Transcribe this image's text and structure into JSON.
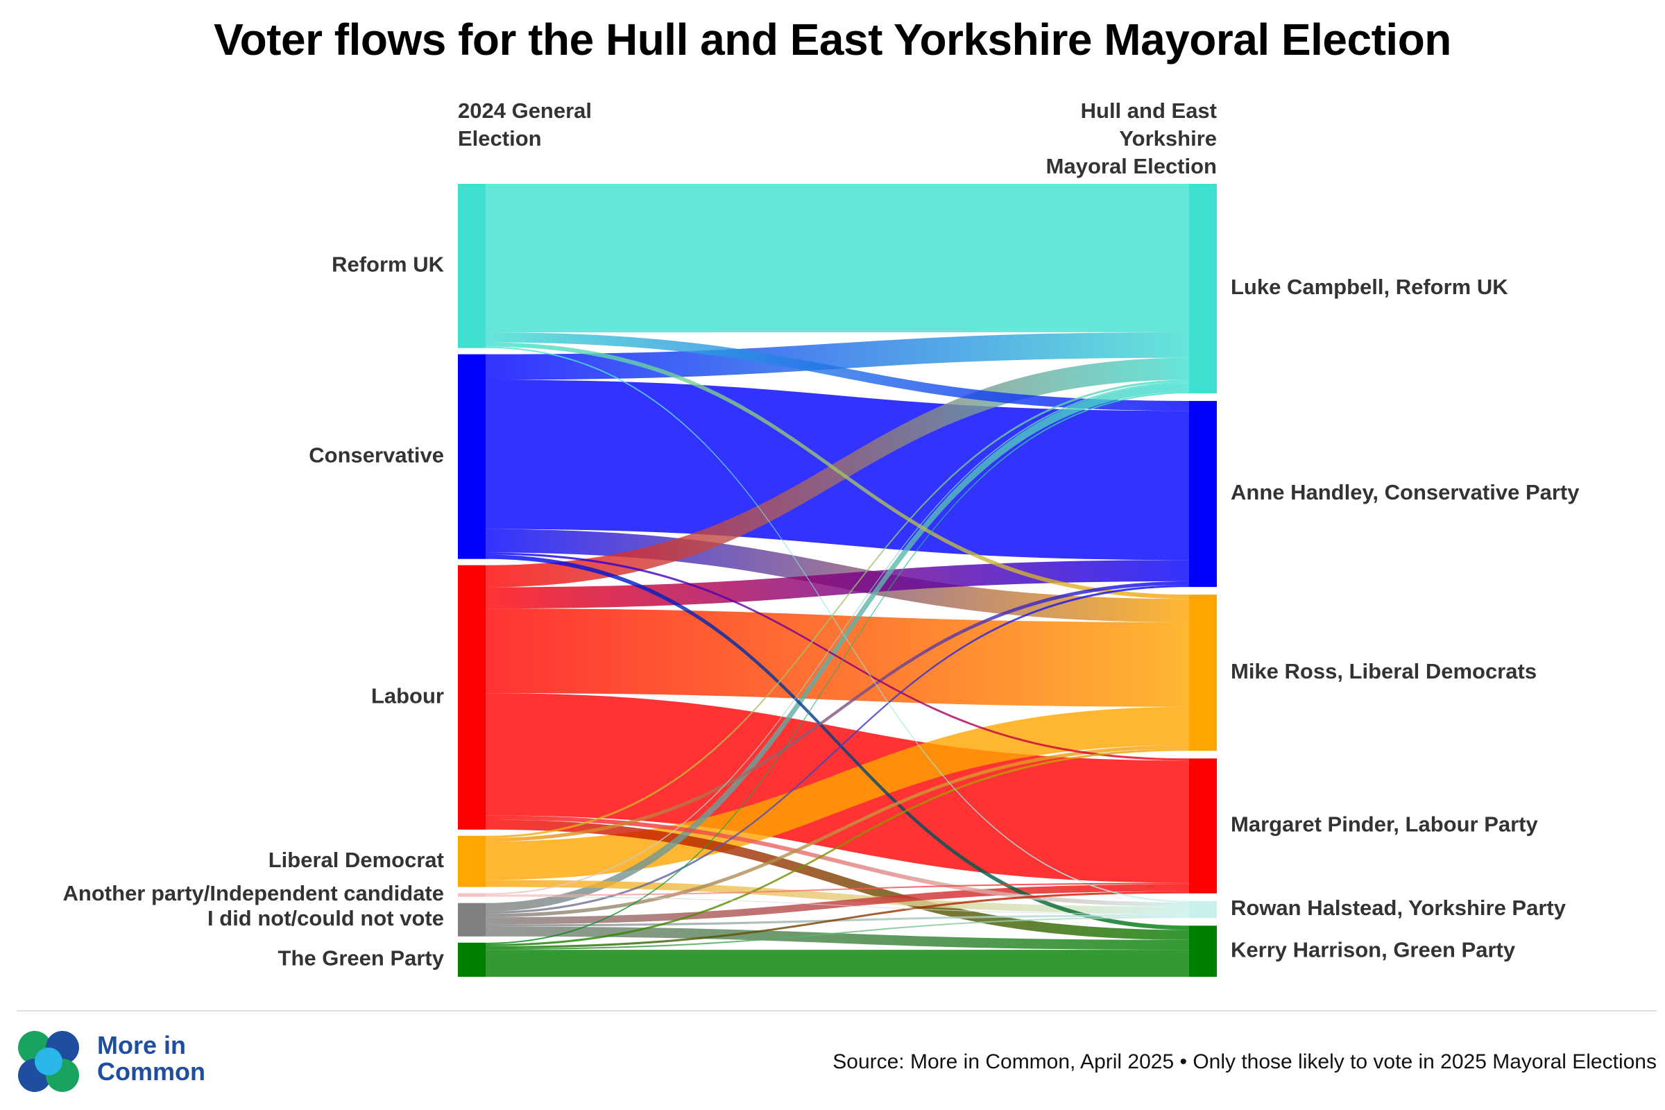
{
  "title": "Voter flows for the Hull and East Yorkshire Mayoral Election",
  "chart_data": {
    "type": "sankey",
    "left_column_title": [
      "2024 General",
      "Election"
    ],
    "right_column_title": [
      "Hull and East",
      "Yorkshire",
      "Mayoral Election"
    ],
    "sources": [
      {
        "id": "reform",
        "label": "Reform UK",
        "color": "#40e0d0"
      },
      {
        "id": "con",
        "label": "Conservative",
        "color": "#0000ff"
      },
      {
        "id": "lab",
        "label": "Labour",
        "color": "#ff0000"
      },
      {
        "id": "ld",
        "label": "Liberal Democrat",
        "color": "#ffa500"
      },
      {
        "id": "oth",
        "label": "Another party/Independent candidate",
        "color": "#f4c2c2"
      },
      {
        "id": "dnv",
        "label": "I did not/could not vote",
        "color": "#808080"
      },
      {
        "id": "grn",
        "label": "The Green Party",
        "color": "#008000"
      }
    ],
    "targets": [
      {
        "id": "luke",
        "label": "Luke Campbell, Reform UK",
        "color": "#40e0d0"
      },
      {
        "id": "anne",
        "label": "Anne Handley, Conservative Party",
        "color": "#0000ff"
      },
      {
        "id": "mike",
        "label": "Mike Ross, Liberal Democrats",
        "color": "#ffa500"
      },
      {
        "id": "marg",
        "label": "Margaret Pinder, Labour Party",
        "color": "#ff0000"
      },
      {
        "id": "rowan",
        "label": "Rowan Halstead, Yorkshire Party",
        "color": "#c8f0ec"
      },
      {
        "id": "kerry",
        "label": "Kerry Harrison, Green Party",
        "color": "#008000"
      }
    ],
    "flows": [
      {
        "source": "reform",
        "target": "luke",
        "value": 209
      },
      {
        "source": "reform",
        "target": "anne",
        "value": 14
      },
      {
        "source": "reform",
        "target": "mike",
        "value": 6
      },
      {
        "source": "reform",
        "target": "rowan",
        "value": 2
      },
      {
        "source": "con",
        "target": "luke",
        "value": 36
      },
      {
        "source": "con",
        "target": "anne",
        "value": 210
      },
      {
        "source": "con",
        "target": "mike",
        "value": 33
      },
      {
        "source": "con",
        "target": "marg",
        "value": 3
      },
      {
        "source": "con",
        "target": "kerry",
        "value": 6
      },
      {
        "source": "lab",
        "target": "luke",
        "value": 31
      },
      {
        "source": "lab",
        "target": "anne",
        "value": 30
      },
      {
        "source": "lab",
        "target": "mike",
        "value": 119
      },
      {
        "source": "lab",
        "target": "marg",
        "value": 172
      },
      {
        "source": "lab",
        "target": "rowan",
        "value": 6
      },
      {
        "source": "lab",
        "target": "kerry",
        "value": 14
      },
      {
        "source": "ld",
        "target": "luke",
        "value": 3
      },
      {
        "source": "ld",
        "target": "anne",
        "value": 5
      },
      {
        "source": "ld",
        "target": "mike",
        "value": 54
      },
      {
        "source": "ld",
        "target": "rowan",
        "value": 10
      },
      {
        "source": "oth",
        "target": "luke",
        "value": 2
      },
      {
        "source": "oth",
        "target": "marg",
        "value": 2
      },
      {
        "source": "oth",
        "target": "rowan",
        "value": 1
      },
      {
        "source": "dnv",
        "target": "luke",
        "value": 12
      },
      {
        "source": "dnv",
        "target": "anne",
        "value": 3
      },
      {
        "source": "dnv",
        "target": "mike",
        "value": 5
      },
      {
        "source": "dnv",
        "target": "marg",
        "value": 10
      },
      {
        "source": "dnv",
        "target": "rowan",
        "value": 3
      },
      {
        "source": "dnv",
        "target": "kerry",
        "value": 14
      },
      {
        "source": "grn",
        "target": "luke",
        "value": 2
      },
      {
        "source": "grn",
        "target": "mike",
        "value": 3
      },
      {
        "source": "grn",
        "target": "marg",
        "value": 3
      },
      {
        "source": "grn",
        "target": "rowan",
        "value": 2
      },
      {
        "source": "grn",
        "target": "kerry",
        "value": 38
      }
    ]
  },
  "footer": {
    "brand_name": "More in Common",
    "source_note": "Source: More in Common, April 2025 • Only those likely to vote in 2025 Mayoral Elections",
    "logo_colors": [
      "#1aa260",
      "#1f4e9e",
      "#29b6e8"
    ]
  }
}
